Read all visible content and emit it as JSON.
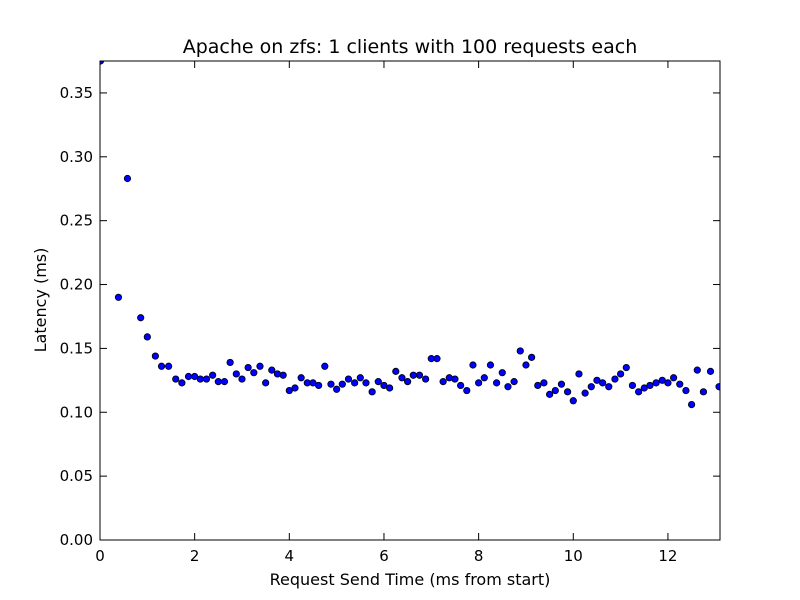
{
  "chart_data": {
    "type": "scatter",
    "title": "Apache on zfs: 1 clients with 100 requests each",
    "xlabel": "Request Send Time (ms from start)",
    "ylabel": "Latency (ms)",
    "xlim": [
      0,
      13.1
    ],
    "ylim": [
      0,
      0.375
    ],
    "grid": false,
    "legend": "none",
    "xticks": [
      0,
      2,
      4,
      6,
      8,
      10,
      12
    ],
    "xtick_labels": [
      "0",
      "2",
      "4",
      "6",
      "8",
      "10",
      "12"
    ],
    "yticks": [
      0,
      0.05,
      0.1,
      0.15,
      0.2,
      0.25,
      0.3,
      0.35
    ],
    "ytick_labels": [
      "0.00",
      "0.05",
      "0.10",
      "0.15",
      "0.20",
      "0.25",
      "0.30",
      "0.35"
    ],
    "marker_color": "#0000ff",
    "marker_edge_color": "#000000",
    "series": [
      {
        "points": [
          [
            0.01,
            0.375
          ],
          [
            0.39,
            0.19
          ],
          [
            0.58,
            0.283
          ],
          [
            0.86,
            0.174
          ],
          [
            1.0,
            0.159
          ],
          [
            1.17,
            0.144
          ],
          [
            1.3,
            0.136
          ],
          [
            1.45,
            0.136
          ],
          [
            1.6,
            0.126
          ],
          [
            1.73,
            0.123
          ],
          [
            1.87,
            0.128
          ],
          [
            2.0,
            0.128
          ],
          [
            2.12,
            0.126
          ],
          [
            2.25,
            0.126
          ],
          [
            2.38,
            0.129
          ],
          [
            2.5,
            0.124
          ],
          [
            2.63,
            0.124
          ],
          [
            2.75,
            0.139
          ],
          [
            2.88,
            0.13
          ],
          [
            3.0,
            0.126
          ],
          [
            3.13,
            0.135
          ],
          [
            3.25,
            0.131
          ],
          [
            3.38,
            0.136
          ],
          [
            3.5,
            0.123
          ],
          [
            3.63,
            0.133
          ],
          [
            3.75,
            0.13
          ],
          [
            3.87,
            0.129
          ],
          [
            4.0,
            0.117
          ],
          [
            4.12,
            0.119
          ],
          [
            4.25,
            0.127
          ],
          [
            4.38,
            0.123
          ],
          [
            4.5,
            0.123
          ],
          [
            4.62,
            0.121
          ],
          [
            4.75,
            0.136
          ],
          [
            4.88,
            0.122
          ],
          [
            5.0,
            0.118
          ],
          [
            5.12,
            0.122
          ],
          [
            5.25,
            0.126
          ],
          [
            5.38,
            0.123
          ],
          [
            5.5,
            0.127
          ],
          [
            5.62,
            0.123
          ],
          [
            5.75,
            0.116
          ],
          [
            5.88,
            0.124
          ],
          [
            6.0,
            0.121
          ],
          [
            6.12,
            0.119
          ],
          [
            6.25,
            0.132
          ],
          [
            6.38,
            0.127
          ],
          [
            6.5,
            0.124
          ],
          [
            6.62,
            0.129
          ],
          [
            6.75,
            0.129
          ],
          [
            6.88,
            0.126
          ],
          [
            7.0,
            0.142
          ],
          [
            7.12,
            0.142
          ],
          [
            7.25,
            0.124
          ],
          [
            7.38,
            0.127
          ],
          [
            7.5,
            0.126
          ],
          [
            7.62,
            0.121
          ],
          [
            7.75,
            0.117
          ],
          [
            7.88,
            0.137
          ],
          [
            8.0,
            0.123
          ],
          [
            8.12,
            0.127
          ],
          [
            8.25,
            0.137
          ],
          [
            8.38,
            0.123
          ],
          [
            8.5,
            0.131
          ],
          [
            8.62,
            0.12
          ],
          [
            8.75,
            0.124
          ],
          [
            8.88,
            0.148
          ],
          [
            9.0,
            0.137
          ],
          [
            9.12,
            0.143
          ],
          [
            9.25,
            0.121
          ],
          [
            9.38,
            0.123
          ],
          [
            9.5,
            0.114
          ],
          [
            9.62,
            0.117
          ],
          [
            9.75,
            0.122
          ],
          [
            9.88,
            0.116
          ],
          [
            10.0,
            0.109
          ],
          [
            10.12,
            0.13
          ],
          [
            10.25,
            0.115
          ],
          [
            10.38,
            0.12
          ],
          [
            10.5,
            0.125
          ],
          [
            10.62,
            0.123
          ],
          [
            10.75,
            0.12
          ],
          [
            10.88,
            0.126
          ],
          [
            11.0,
            0.13
          ],
          [
            11.12,
            0.135
          ],
          [
            11.25,
            0.121
          ],
          [
            11.38,
            0.116
          ],
          [
            11.5,
            0.119
          ],
          [
            11.62,
            0.121
          ],
          [
            11.75,
            0.123
          ],
          [
            11.88,
            0.125
          ],
          [
            12.0,
            0.123
          ],
          [
            12.12,
            0.127
          ],
          [
            12.25,
            0.122
          ],
          [
            12.38,
            0.117
          ],
          [
            12.5,
            0.106
          ],
          [
            12.62,
            0.133
          ],
          [
            12.75,
            0.116
          ],
          [
            12.9,
            0.132
          ],
          [
            13.08,
            0.12
          ]
        ]
      }
    ]
  }
}
